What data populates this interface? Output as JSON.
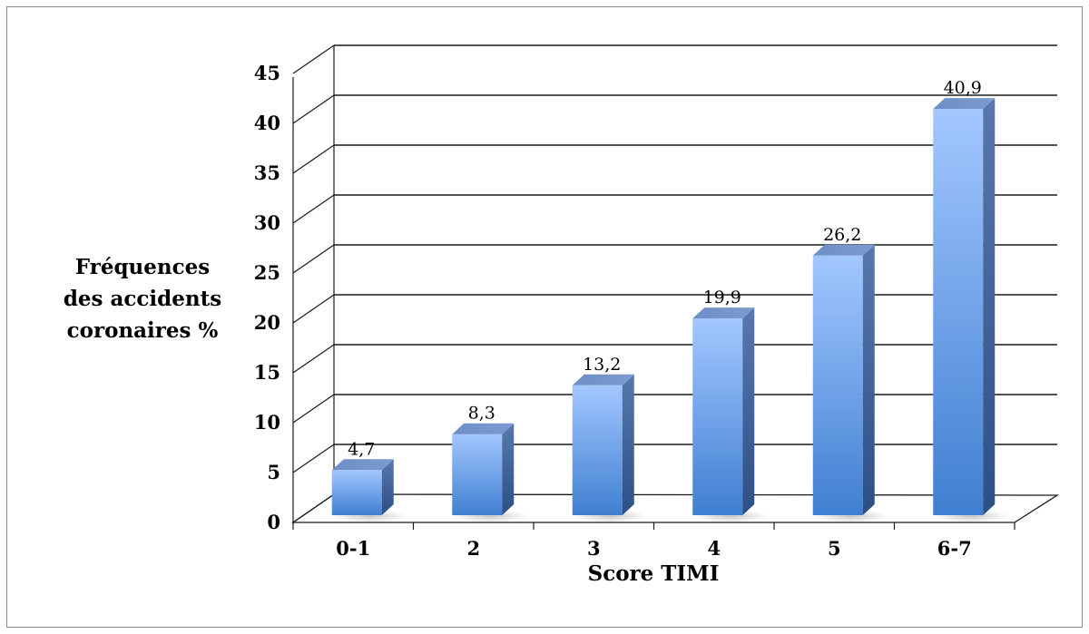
{
  "chart_data": {
    "type": "bar",
    "title": "",
    "categories": [
      "0-1",
      "2",
      "3",
      "4",
      "5",
      "6-7"
    ],
    "values": [
      4.7,
      8.3,
      13.2,
      19.9,
      26.2,
      40.9
    ],
    "data_labels": [
      "4,7",
      "8,3",
      "13,2",
      "19,9",
      "26,2",
      "40,9"
    ],
    "xlabel": "Score TIMI",
    "ylabel_lines": [
      "Fréquences",
      "des accidents",
      "coronaires %"
    ],
    "ylim": [
      0,
      45
    ],
    "yticks": [
      "0",
      "5",
      "10",
      "15",
      "20",
      "25",
      "30",
      "35",
      "40",
      "45"
    ],
    "grid": true,
    "bar_color": "#5b8fd6",
    "bar_top_color": "#6f92c9",
    "bar_side_color": "#3d5f95",
    "legend": "none"
  }
}
